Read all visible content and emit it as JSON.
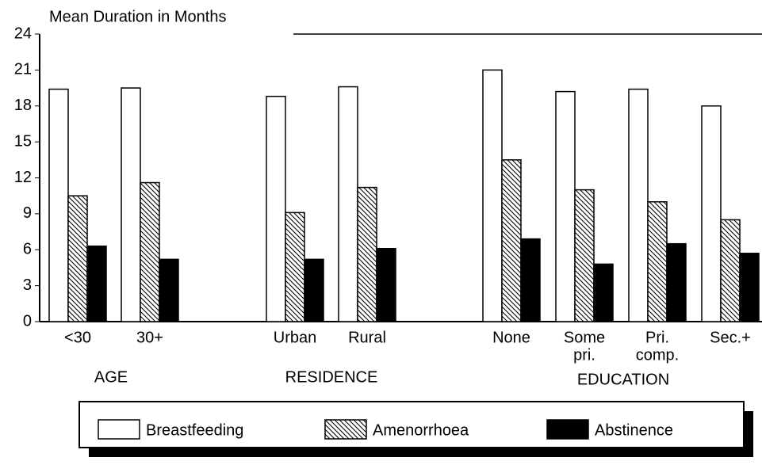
{
  "chart_data": {
    "type": "bar",
    "y_label": "Mean Duration in Months",
    "categories": [
      [
        "<30"
      ],
      [
        "30+"
      ],
      [
        "Urban"
      ],
      [
        "Rural"
      ],
      [
        "None"
      ],
      [
        "Some",
        "pri."
      ],
      [
        "Pri.",
        "comp."
      ],
      [
        "Sec.+"
      ]
    ],
    "groups": [
      "AGE",
      "RESIDENCE",
      "EDUCATION"
    ],
    "series": [
      {
        "name": "Breastfeeding",
        "color": "#ffffff",
        "values": [
          19.4,
          19.5,
          18.8,
          19.6,
          21.0,
          19.2,
          19.4,
          18.0
        ]
      },
      {
        "name": "Amenorrhoea",
        "color": "#ffffff",
        "hatch": true,
        "values": [
          10.5,
          11.6,
          9.1,
          11.2,
          13.5,
          11.0,
          10.0,
          8.5
        ]
      },
      {
        "name": "Abstinence",
        "color": "#000000",
        "values": [
          6.3,
          5.2,
          5.2,
          6.1,
          6.9,
          4.8,
          6.5,
          5.7
        ]
      }
    ],
    "ylim": [
      0,
      24
    ],
    "yticks": [
      0,
      3,
      6,
      9,
      12,
      15,
      18,
      21,
      24
    ]
  }
}
